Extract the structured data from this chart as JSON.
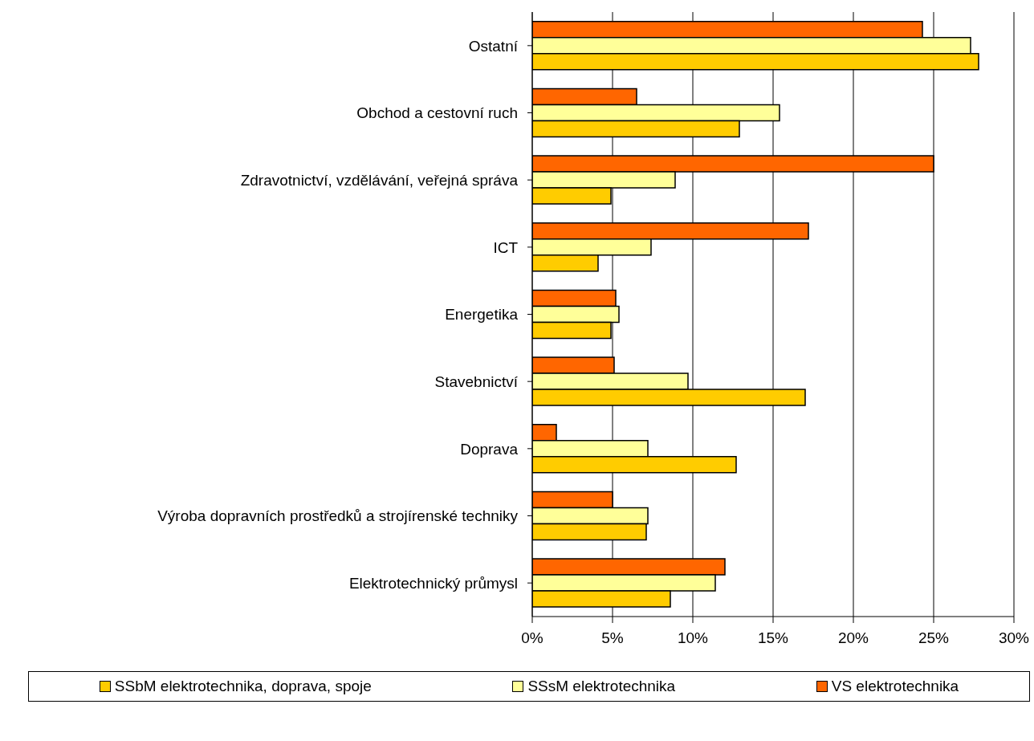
{
  "chart_data": {
    "type": "bar",
    "orientation": "horizontal",
    "categories": [
      "Ostatní",
      "Obchod a cestovní ruch",
      "Zdravotnictví, vzdělávání, veřejná správa",
      "ICT",
      "Energetika",
      "Stavebnictví",
      "Doprava",
      "Výroba dopravních prostředků a strojírenské techniky",
      "Elektrotechnický průmysl"
    ],
    "series": [
      {
        "name": "SSbM elektrotechnika, doprava, spoje",
        "color": "#ffcc00",
        "values": [
          27.8,
          12.9,
          4.9,
          4.1,
          4.9,
          17.0,
          12.7,
          7.1,
          8.6
        ]
      },
      {
        "name": "SSsM elektrotechnika",
        "color": "#ffff99",
        "values": [
          27.3,
          15.4,
          8.9,
          7.4,
          5.4,
          9.7,
          7.2,
          7.2,
          11.4
        ]
      },
      {
        "name": "VS elektrotechnika",
        "color": "#ff6600",
        "values": [
          24.3,
          6.5,
          25.0,
          17.2,
          5.2,
          5.1,
          1.5,
          5.0,
          12.0
        ]
      }
    ],
    "xlim": [
      0,
      30
    ],
    "xticks": [
      {
        "value": 0,
        "label": "0%"
      },
      {
        "value": 5,
        "label": "5%"
      },
      {
        "value": 10,
        "label": "10%"
      },
      {
        "value": 15,
        "label": "15%"
      },
      {
        "value": 20,
        "label": "20%"
      },
      {
        "value": 25,
        "label": "25%"
      },
      {
        "value": 30,
        "label": "30%"
      }
    ],
    "grid": "x",
    "legend": "bottom"
  }
}
